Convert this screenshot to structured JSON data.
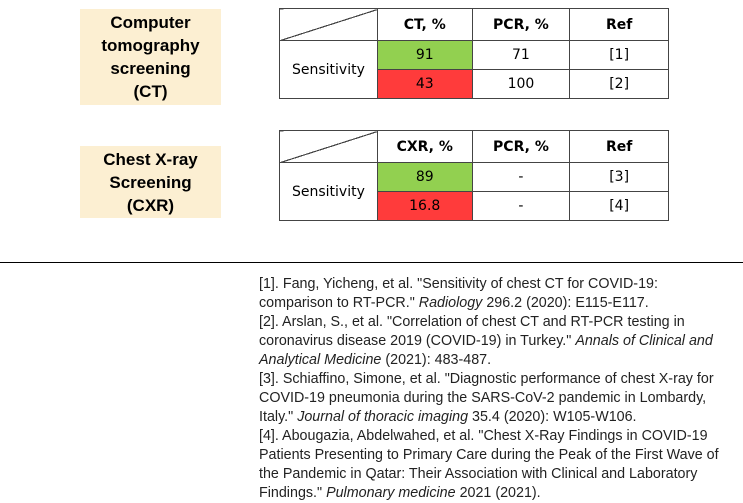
{
  "ct": {
    "label_lines": [
      "Computer",
      "tomography",
      "screening",
      "(CT)"
    ],
    "headers": [
      "CT, %",
      "PCR, %",
      "Ref"
    ],
    "row_label": "Sensitivity",
    "rows": [
      {
        "value": "91",
        "pcr": "71",
        "ref": "[1]",
        "color": "#92d050"
      },
      {
        "value": "43",
        "pcr": "100",
        "ref": "[2]",
        "color": "#ff3b3b"
      }
    ]
  },
  "cxr": {
    "label_lines": [
      "Chest X-ray",
      "Screening",
      "(CXR)"
    ],
    "headers": [
      "CXR, %",
      "PCR, %",
      "Ref"
    ],
    "row_label": "Sensitivity",
    "rows": [
      {
        "value": "89",
        "pcr": "-",
        "ref": "[3]",
        "color": "#92d050"
      },
      {
        "value": "16.8",
        "pcr": "-",
        "ref": "[4]",
        "color": "#ff3b3b"
      }
    ]
  },
  "references": [
    {
      "pre": "[1]. Fang, Yicheng, et al. \"Sensitivity of chest CT for COVID-19: comparison to RT-PCR.\" ",
      "journal": "Radiology",
      "post": " 296.2 (2020): E115-E117."
    },
    {
      "pre": "[2]. Arslan, S., et al. \"Correlation of chest CT and RT-PCR testing in coronavirus disease 2019 (COVID-19) in Turkey.\" ",
      "journal": "Annals of Clinical and Analytical Medicine",
      "post": " (2021): 483-487."
    },
    {
      "pre": "[3]. Schiaffino, Simone, et al. \"Diagnostic performance of chest X-ray for COVID-19 pneumonia during the SARS-CoV-2 pandemic in Lombardy, Italy.\" ",
      "journal": "Journal of thoracic imaging",
      "post": " 35.4 (2020): W105-W106."
    },
    {
      "pre": "[4]. Abougazia, Abdelwahed, et al. \"Chest X-Ray Findings in COVID-19 Patients Presenting to Primary Care during the Peak of the First Wave of the Pandemic in Qatar: Their Association with Clinical and Laboratory Findings.\" ",
      "journal": "Pulmonary medicine",
      "post": " 2021 (2021)."
    }
  ]
}
